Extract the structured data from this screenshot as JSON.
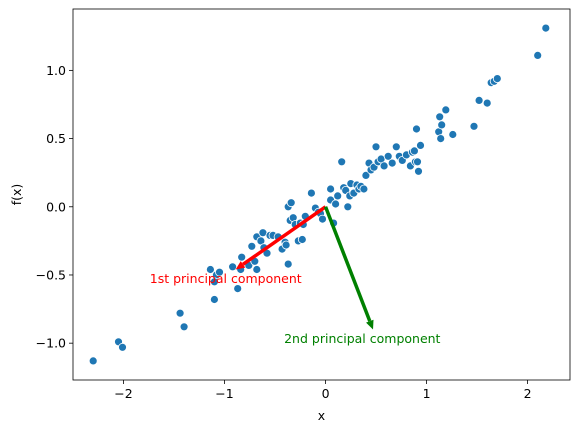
{
  "chart_data": {
    "type": "scatter",
    "xlabel": "x",
    "ylabel": "f(x)",
    "xlim": [
      -2.5,
      2.42
    ],
    "ylim": [
      -1.27,
      1.45
    ],
    "grid": false,
    "x_ticks": [
      -2,
      -1,
      0,
      1,
      2
    ],
    "x_tick_labels": [
      "−2",
      "−1",
      "0",
      "1",
      "2"
    ],
    "y_ticks": [
      -1.0,
      -0.5,
      0.0,
      0.5,
      1.0
    ],
    "y_tick_labels": [
      "−1.0",
      "−0.5",
      "0.0",
      "0.5",
      "1.0"
    ],
    "point_color": "#1f77b4",
    "points": [
      [
        -2.3,
        -1.13
      ],
      [
        -2.05,
        -0.99
      ],
      [
        -2.01,
        -1.03
      ],
      [
        -1.44,
        -0.78
      ],
      [
        -1.4,
        -0.88
      ],
      [
        -1.14,
        -0.46
      ],
      [
        -1.1,
        -0.68
      ],
      [
        -1.08,
        -0.5
      ],
      [
        -1.1,
        -0.55
      ],
      [
        -1.05,
        -0.48
      ],
      [
        -0.92,
        -0.44
      ],
      [
        -0.87,
        -0.6
      ],
      [
        -0.84,
        -0.46
      ],
      [
        -0.83,
        -0.37
      ],
      [
        -0.76,
        -0.43
      ],
      [
        -0.73,
        -0.29
      ],
      [
        -0.7,
        -0.4
      ],
      [
        -0.68,
        -0.22
      ],
      [
        -0.68,
        -0.46
      ],
      [
        -0.64,
        -0.25
      ],
      [
        -0.62,
        -0.19
      ],
      [
        -0.61,
        -0.3
      ],
      [
        -0.58,
        -0.34
      ],
      [
        -0.55,
        -0.21
      ],
      [
        -0.52,
        -0.21
      ],
      [
        -0.47,
        -0.22
      ],
      [
        -0.43,
        -0.31
      ],
      [
        -0.4,
        -0.26
      ],
      [
        -0.39,
        -0.28
      ],
      [
        -0.37,
        -0.42
      ],
      [
        -0.37,
        0.0
      ],
      [
        -0.35,
        -0.1
      ],
      [
        -0.34,
        0.03
      ],
      [
        -0.32,
        -0.08
      ],
      [
        -0.3,
        -0.13
      ],
      [
        -0.27,
        -0.25
      ],
      [
        -0.25,
        -0.12
      ],
      [
        -0.23,
        -0.24
      ],
      [
        -0.22,
        -0.13
      ],
      [
        -0.2,
        -0.07
      ],
      [
        -0.14,
        0.1
      ],
      [
        -0.1,
        -0.01
      ],
      [
        -0.07,
        -0.04
      ],
      [
        -0.05,
        -0.05
      ],
      [
        -0.03,
        -0.09
      ],
      [
        0.05,
        0.05
      ],
      [
        0.05,
        0.13
      ],
      [
        0.08,
        -0.12
      ],
      [
        0.1,
        0.02
      ],
      [
        0.12,
        0.08
      ],
      [
        0.16,
        0.33
      ],
      [
        0.18,
        0.14
      ],
      [
        0.2,
        0.12
      ],
      [
        0.22,
        0.0
      ],
      [
        0.24,
        0.08
      ],
      [
        0.25,
        0.17
      ],
      [
        0.28,
        0.1
      ],
      [
        0.31,
        0.16
      ],
      [
        0.33,
        0.13
      ],
      [
        0.35,
        0.15
      ],
      [
        0.38,
        0.13
      ],
      [
        0.4,
        0.23
      ],
      [
        0.43,
        0.32
      ],
      [
        0.45,
        0.27
      ],
      [
        0.48,
        0.29
      ],
      [
        0.5,
        0.44
      ],
      [
        0.52,
        0.33
      ],
      [
        0.55,
        0.35
      ],
      [
        0.58,
        0.3
      ],
      [
        0.62,
        0.37
      ],
      [
        0.66,
        0.32
      ],
      [
        0.7,
        0.44
      ],
      [
        0.73,
        0.37
      ],
      [
        0.76,
        0.34
      ],
      [
        0.8,
        0.38
      ],
      [
        0.84,
        0.3
      ],
      [
        0.86,
        0.4
      ],
      [
        0.88,
        0.41
      ],
      [
        0.89,
        0.33
      ],
      [
        0.9,
        0.57
      ],
      [
        0.91,
        0.33
      ],
      [
        0.92,
        0.26
      ],
      [
        0.94,
        0.45
      ],
      [
        1.12,
        0.55
      ],
      [
        1.13,
        0.66
      ],
      [
        1.14,
        0.5
      ],
      [
        1.15,
        0.6
      ],
      [
        1.19,
        0.71
      ],
      [
        1.26,
        0.53
      ],
      [
        1.47,
        0.59
      ],
      [
        1.52,
        0.78
      ],
      [
        1.6,
        0.76
      ],
      [
        1.64,
        0.91
      ],
      [
        1.67,
        0.92
      ],
      [
        1.7,
        0.94
      ],
      [
        2.1,
        1.11
      ],
      [
        2.18,
        1.31
      ]
    ],
    "arrows": [
      {
        "label": "1st principal component",
        "color": "#ff0000",
        "from": [
          0.0,
          0.0
        ],
        "to": [
          -0.89,
          -0.46
        ],
        "label_at": [
          -1.74,
          -0.53
        ]
      },
      {
        "label": "2nd principal component",
        "color": "#008000",
        "from": [
          0.0,
          0.0
        ],
        "to": [
          0.47,
          -0.9
        ],
        "label_at": [
          -0.41,
          -0.97
        ]
      }
    ]
  }
}
